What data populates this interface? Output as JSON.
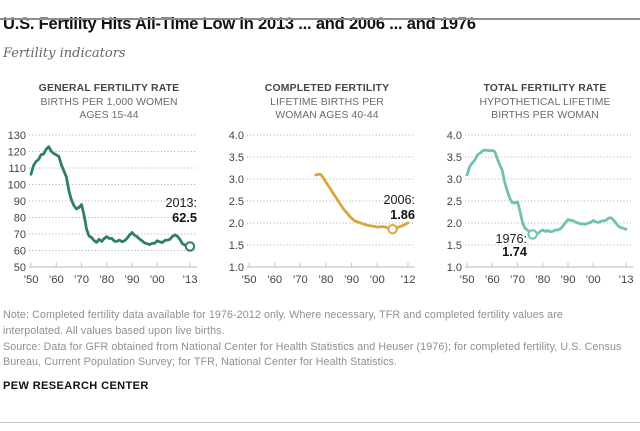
{
  "header": {
    "title": "U.S. Fertility Hits All-Time Low in 2013 ... and 2006 ... and 1976",
    "subtitle": "Fertility indicators"
  },
  "colors": {
    "gfr_line": "#2E7E6E",
    "completed_line": "#D8A73B",
    "tfr_line": "#6FC2B2",
    "gridline": "#ACACAC",
    "axis": "#C5C5C5",
    "tick_label": "#424242",
    "annotation": "#1a1a1a"
  },
  "chart_data": [
    {
      "type": "line",
      "title": "GENERAL FERTILITY RATE",
      "subtitle_lines": [
        "BIRTHS PER 1,000 WOMEN",
        "AGES 15-44"
      ],
      "color": "#2E7E6E",
      "ylim": [
        50,
        130
      ],
      "yticks": [
        130,
        120,
        110,
        100,
        90,
        80,
        70,
        60,
        50
      ],
      "ytick_labels": [
        "130",
        "120",
        "110",
        "100",
        "90",
        "80",
        "70",
        "60",
        "50"
      ],
      "xlim": [
        1950,
        2013
      ],
      "xticks": [
        {
          "year": 1950,
          "label": "’50"
        },
        {
          "year": 1960,
          "label": "’60"
        },
        {
          "year": 1970,
          "label": "’70"
        },
        {
          "year": 1980,
          "label": "’80"
        },
        {
          "year": 1990,
          "label": "’90"
        },
        {
          "year": 2000,
          "label": "’00"
        },
        {
          "year": 2013,
          "label": "’13"
        }
      ],
      "x_start": 1950,
      "values": [
        106.2,
        111.5,
        113.9,
        115.2,
        118.1,
        118.5,
        121.2,
        122.9,
        120.2,
        118.8,
        118,
        117.1,
        112,
        108.3,
        104.7,
        96.3,
        90.8,
        87.2,
        85.2,
        86.1,
        87.9,
        81.6,
        73.1,
        68.8,
        67.8,
        66,
        65,
        66.8,
        65.5,
        67.2,
        68.4,
        67.3,
        67.3,
        65.7,
        65.5,
        66.3,
        65.4,
        65.8,
        67.3,
        69.2,
        70.9,
        69.3,
        68.4,
        67,
        65.9,
        64.6,
        64.1,
        63.6,
        64.3,
        64.4,
        65.9,
        65.3,
        64.8,
        66.1,
        66.3,
        66.7,
        68.5,
        69.5,
        68.6,
        66.7,
        64.1,
        63.2,
        63,
        62.5
      ],
      "marker": {
        "year": 2013,
        "value": 62.5
      },
      "callout": {
        "label": "2013:",
        "value": "62.5",
        "align": "end",
        "x": 197,
        "y_label": 81,
        "y_value": 96
      },
      "grid": "dotted",
      "legend": "none"
    },
    {
      "type": "line",
      "title": "COMPLETED FERTILITY",
      "subtitle_lines": [
        "LIFETIME BIRTHS PER",
        "WOMAN AGES 40-44"
      ],
      "color": "#D8A73B",
      "ylim": [
        1.0,
        4.0
      ],
      "yticks": [
        4.0,
        3.5,
        3.0,
        2.5,
        2.0,
        1.5,
        1.0
      ],
      "ytick_labels": [
        "4.0",
        "3.5",
        "3.0",
        "2.5",
        "2.0",
        "1.5",
        "1.0"
      ],
      "xlim": [
        1950,
        2012
      ],
      "xticks": [
        {
          "year": 1950,
          "label": "’50"
        },
        {
          "year": 1960,
          "label": "’60"
        },
        {
          "year": 1970,
          "label": "’70"
        },
        {
          "year": 1980,
          "label": "’80"
        },
        {
          "year": 1990,
          "label": "’90"
        },
        {
          "year": 2000,
          "label": "’00"
        },
        {
          "year": 2012,
          "label": "’12"
        }
      ],
      "x_start": 1976,
      "values": [
        3.09,
        3.11,
        3.1,
        3.02,
        2.93,
        2.84,
        2.75,
        2.66,
        2.57,
        2.48,
        2.39,
        2.31,
        2.24,
        2.17,
        2.11,
        2.06,
        2.03,
        2.01,
        1.99,
        1.97,
        1.95,
        1.94,
        1.93,
        1.92,
        1.91,
        1.91,
        1.92,
        1.91,
        1.89,
        1.87,
        1.86,
        1.88,
        1.9,
        1.92,
        1.94,
        1.97,
        2
      ],
      "marker": {
        "year": 2006,
        "value": 1.86
      },
      "callout": {
        "label": "2006:",
        "value": "1.86",
        "align": "end",
        "x": 197,
        "y_label": 78,
        "y_value": 93
      },
      "grid": "dotted",
      "legend": "none"
    },
    {
      "type": "line",
      "title": "TOTAL FERTILITY RATE",
      "subtitle_lines": [
        "HYPOTHETICAL LIFETIME",
        "BIRTHS PER WOMAN"
      ],
      "color": "#6FC2B2",
      "ylim": [
        1.0,
        4.0
      ],
      "yticks": [
        4.0,
        3.5,
        3.0,
        2.5,
        2.0,
        1.5,
        1.0
      ],
      "ytick_labels": [
        "4.0",
        "3.5",
        "3.0",
        "2.5",
        "2.0",
        "1.5",
        "1.0"
      ],
      "xlim": [
        1950,
        2013
      ],
      "xticks": [
        {
          "year": 1950,
          "label": "’50"
        },
        {
          "year": 1960,
          "label": "’60"
        },
        {
          "year": 1970,
          "label": "’70"
        },
        {
          "year": 1980,
          "label": "’80"
        },
        {
          "year": 1990,
          "label": "’90"
        },
        {
          "year": 2000,
          "label": "’00"
        },
        {
          "year": 2013,
          "label": "’13"
        }
      ],
      "x_start": 1950,
      "values": [
        3.09,
        3.27,
        3.36,
        3.42,
        3.54,
        3.58,
        3.63,
        3.66,
        3.65,
        3.64,
        3.65,
        3.62,
        3.46,
        3.32,
        3.19,
        2.91,
        2.72,
        2.56,
        2.46,
        2.46,
        2.48,
        2.27,
        2.01,
        1.88,
        1.84,
        1.77,
        1.74,
        1.79,
        1.76,
        1.81,
        1.84,
        1.81,
        1.83,
        1.8,
        1.81,
        1.84,
        1.84,
        1.87,
        1.93,
        2.01,
        2.08,
        2.06,
        2.05,
        2.02,
        2,
        1.98,
        1.98,
        1.97,
        2,
        2.01,
        2.06,
        2.03,
        2.01,
        2.04,
        2.05,
        2.06,
        2.11,
        2.12,
        2.07,
        2,
        1.93,
        1.89,
        1.88,
        1.86
      ],
      "marker": {
        "year": 1976,
        "value": 1.74
      },
      "callout": {
        "label": "1976:",
        "value": "1.74",
        "align": "end",
        "x": 91,
        "y_label": 117,
        "y_value": 130
      },
      "grid": "dotted",
      "legend": "none"
    }
  ],
  "footer": {
    "note_lines": [
      "Note: Completed fertility data available for 1976-2012 only. Where necessary, TFR and completed fertility values are",
      "interpolated. All values based upon live births."
    ],
    "source_lines": [
      "Source: Data for GFR obtained from National Center for Health Statistics and Heuser (1976); for completed fertility, U.S. Census",
      "Bureau, Current Population Survey; for TFR, National Center for Health Statistics."
    ],
    "branding": "PEW RESEARCH CENTER"
  }
}
